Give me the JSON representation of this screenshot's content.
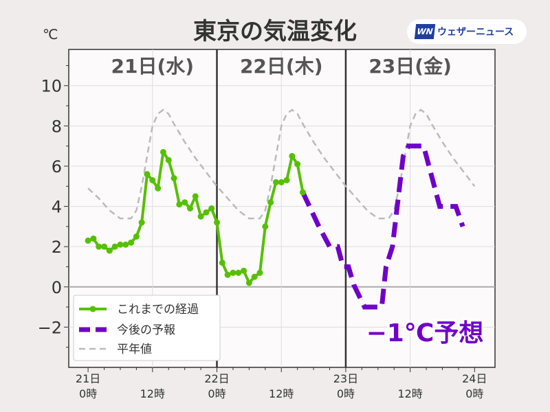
{
  "title": "東京の気温変化",
  "logo": {
    "mark": "WN",
    "text": "ウェザーニュース"
  },
  "colors": {
    "observed": "#55c000",
    "forecast": "#7000c8",
    "normal": "#bbbbbb",
    "annotation": "#7000c8"
  },
  "chart_data": {
    "type": "line",
    "title": "東京の気温変化",
    "ylabel": "℃",
    "xlim_hours": [
      -3.6,
      75.8
    ],
    "ylim": [
      -4,
      11.8
    ],
    "yticks": [
      -2,
      0,
      2,
      4,
      6,
      8,
      10
    ],
    "ytick_labels": [
      "−2",
      "0",
      "2",
      "4",
      "6",
      "8",
      "10"
    ],
    "xticks": [
      {
        "hour": 0,
        "label1": "21日",
        "label2": "0時"
      },
      {
        "hour": 12,
        "label1": "",
        "label2": "12時"
      },
      {
        "hour": 24,
        "label1": "22日",
        "label2": "0時"
      },
      {
        "hour": 36,
        "label1": "",
        "label2": "12時"
      },
      {
        "hour": 48,
        "label1": "23日",
        "label2": "0時"
      },
      {
        "hour": 60,
        "label1": "",
        "label2": "12時"
      },
      {
        "hour": 72,
        "label1": "24日",
        "label2": "0時"
      }
    ],
    "day_labels": [
      {
        "hour": 12,
        "label": "21日(水)"
      },
      {
        "hour": 36,
        "label": "22日(木)"
      },
      {
        "hour": 60,
        "label": "23日(金)"
      }
    ],
    "grid": true,
    "legend_placement": "bottom-left",
    "series": [
      {
        "name": "これまでの経過",
        "style": "solid-markers",
        "points": [
          [
            0,
            2.3
          ],
          [
            1,
            2.4
          ],
          [
            2,
            2.0
          ],
          [
            3,
            2.0
          ],
          [
            4,
            1.8
          ],
          [
            5,
            2.0
          ],
          [
            6,
            2.1
          ],
          [
            7,
            2.1
          ],
          [
            8,
            2.2
          ],
          [
            9,
            2.5
          ],
          [
            10,
            3.2
          ],
          [
            11,
            5.6
          ],
          [
            12,
            5.3
          ],
          [
            13,
            4.9
          ],
          [
            14,
            6.7
          ],
          [
            15,
            6.3
          ],
          [
            16,
            5.4
          ],
          [
            17,
            4.1
          ],
          [
            18,
            4.2
          ],
          [
            19,
            3.9
          ],
          [
            20,
            4.5
          ],
          [
            21,
            3.5
          ],
          [
            22,
            3.7
          ],
          [
            23,
            3.9
          ],
          [
            24,
            3.2
          ],
          [
            25,
            1.2
          ],
          [
            26,
            0.6
          ],
          [
            27,
            0.7
          ],
          [
            28,
            0.7
          ],
          [
            29,
            0.8
          ],
          [
            30,
            0.2
          ],
          [
            31,
            0.5
          ],
          [
            32,
            0.7
          ],
          [
            33,
            3.0
          ],
          [
            34,
            4.2
          ],
          [
            35,
            5.2
          ],
          [
            36,
            5.2
          ],
          [
            37,
            5.3
          ],
          [
            38,
            6.5
          ],
          [
            39,
            6.1
          ],
          [
            40,
            4.7
          ]
        ]
      },
      {
        "name": "今後の予報",
        "style": "thick-dashed",
        "points": [
          [
            40,
            4.7
          ],
          [
            43,
            3.0
          ],
          [
            45,
            2.0
          ],
          [
            46.5,
            2.0
          ],
          [
            47.5,
            1.0
          ],
          [
            48.5,
            1.0
          ],
          [
            49.5,
            0.1
          ],
          [
            51.5,
            -1.0
          ],
          [
            54.7,
            -1.0
          ],
          [
            55.5,
            1.0
          ],
          [
            56.7,
            2.0
          ],
          [
            58.7,
            6.5
          ],
          [
            59.7,
            7.0
          ],
          [
            62.5,
            7.0
          ],
          [
            65.5,
            4.0
          ],
          [
            68.5,
            4.0
          ],
          [
            69.8,
            3.0
          ]
        ]
      },
      {
        "name": "平年値",
        "style": "dashed",
        "points": [
          [
            0,
            4.9
          ],
          [
            2,
            4.4
          ],
          [
            4,
            3.8
          ],
          [
            6,
            3.4
          ],
          [
            8,
            3.4
          ],
          [
            9,
            3.8
          ],
          [
            10,
            5.0
          ],
          [
            11,
            6.5
          ],
          [
            12,
            8.0
          ],
          [
            13,
            8.6
          ],
          [
            14,
            8.8
          ],
          [
            15,
            8.6
          ],
          [
            16,
            8.1
          ],
          [
            18,
            7.2
          ],
          [
            20,
            6.4
          ],
          [
            22,
            5.7
          ],
          [
            24,
            5.0
          ],
          [
            26,
            4.4
          ],
          [
            28,
            3.8
          ],
          [
            30,
            3.4
          ],
          [
            32,
            3.4
          ],
          [
            33,
            3.8
          ],
          [
            34,
            5.0
          ],
          [
            35,
            6.5
          ],
          [
            36,
            8.0
          ],
          [
            37,
            8.6
          ],
          [
            38,
            8.8
          ],
          [
            39,
            8.6
          ],
          [
            40,
            8.1
          ],
          [
            42,
            7.2
          ],
          [
            44,
            6.4
          ],
          [
            46,
            5.7
          ],
          [
            48,
            5.0
          ],
          [
            50,
            4.4
          ],
          [
            52,
            3.8
          ],
          [
            54,
            3.4
          ],
          [
            56,
            3.4
          ],
          [
            57,
            3.8
          ],
          [
            58,
            5.0
          ],
          [
            59,
            6.5
          ],
          [
            60,
            8.0
          ],
          [
            61,
            8.6
          ],
          [
            62,
            8.8
          ],
          [
            63,
            8.6
          ],
          [
            64,
            8.1
          ],
          [
            66,
            7.2
          ],
          [
            68,
            6.4
          ],
          [
            70,
            5.7
          ],
          [
            72,
            5.0
          ]
        ]
      }
    ],
    "annotation": "−1℃予想"
  }
}
